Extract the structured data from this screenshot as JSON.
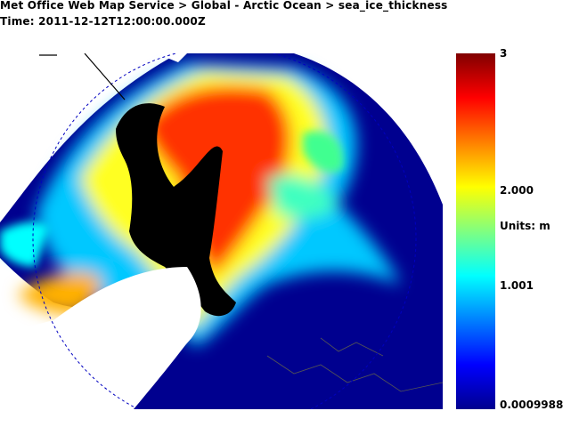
{
  "header": {
    "breadcrumb": "Met Office Web Map Service > Global - Arctic Ocean > sea_ice_thickness",
    "time": "Time: 2011-12-12T12:00:00.000Z"
  },
  "colorbar": {
    "labels": [
      "3",
      "2.000",
      "Units: m",
      "1.001",
      "0.0009988"
    ]
  }
}
